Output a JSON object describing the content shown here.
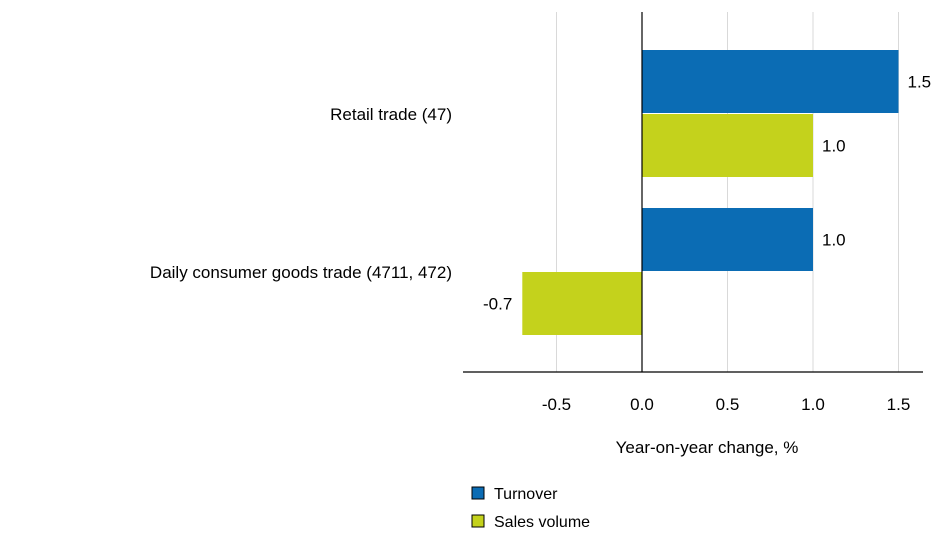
{
  "chart_data": {
    "type": "bar",
    "orientation": "horizontal",
    "categories": [
      "Retail trade (47)",
      "Daily consumer goods trade (4711, 472)"
    ],
    "series": [
      {
        "name": "Turnover",
        "color": "#0b6cb4",
        "values": [
          1.5,
          1.0
        ]
      },
      {
        "name": "Sales volume",
        "color": "#c4d21c",
        "values": [
          1.0,
          -0.7
        ]
      }
    ],
    "xlabel": "Year-on-year change, %",
    "ylabel": "",
    "xlim": [
      -1.0,
      1.65
    ],
    "xticks": [
      -0.5,
      0.0,
      0.5,
      1.0,
      1.5
    ],
    "tick_labels": [
      "-0.5",
      "0.0",
      "0.5",
      "1.0",
      "1.5"
    ],
    "value_labels": [
      [
        "1.5",
        "1.0"
      ],
      [
        "1.0",
        "-0.7"
      ]
    ],
    "grid": "vertical",
    "legend_position": "bottom"
  }
}
